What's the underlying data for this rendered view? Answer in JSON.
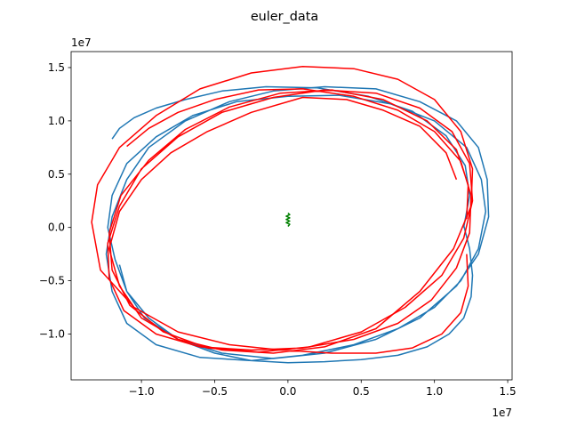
{
  "chart_data": {
    "type": "line",
    "title": "euler_data",
    "xlim": [
      -14800000,
      15300000
    ],
    "ylim": [
      -14300000,
      16500000
    ],
    "x_offset_label": "1e7",
    "y_offset_label": "1e7",
    "x_ticks": [
      {
        "value": -10000000,
        "label": "−1.0"
      },
      {
        "value": -5000000,
        "label": "−0.5"
      },
      {
        "value": 0,
        "label": "0.0"
      },
      {
        "value": 5000000,
        "label": "0.5"
      },
      {
        "value": 10000000,
        "label": "1.0"
      },
      {
        "value": 15000000,
        "label": "1.5"
      }
    ],
    "y_ticks": [
      {
        "value": -10000000,
        "label": "−1.0"
      },
      {
        "value": -5000000,
        "label": "−0.5"
      },
      {
        "value": 0,
        "label": "0.0"
      },
      {
        "value": 5000000,
        "label": "0.5"
      },
      {
        "value": 10000000,
        "label": "1.0"
      },
      {
        "value": 15000000,
        "label": "1.5"
      }
    ],
    "series": [
      {
        "color": "#1f77b4",
        "x": [
          12000000,
          12400000,
          12600000,
          12500000,
          12000000,
          11000000,
          9500000,
          7500000,
          5000000,
          2500000,
          0,
          -2500000,
          -5000000,
          -7500000,
          -9500000,
          -11000000,
          -11800000,
          -12300000,
          -12000000,
          -11000000,
          -9000000,
          -6500000,
          -3500000,
          0,
          3500000,
          7000000,
          10000000,
          12200000,
          13200000,
          13500000,
          13000000,
          11800000,
          10000000,
          7500000,
          4500000,
          1000000,
          -2500000,
          -6000000,
          -9000000,
          -11000000,
          -12000000,
          -12400000,
          -12000000,
          -11000000,
          -9500000,
          -7000000,
          -4000000,
          -1000000,
          2500000,
          6000000,
          9000000,
          11500000,
          13000000,
          13600000,
          13700000,
          13000000,
          11500000,
          9000000,
          6000000,
          2500000,
          -1000000,
          -4500000,
          -7500000,
          -9800000,
          -11000000,
          -11500000
        ],
        "y": [
          200000,
          -2000000,
          -4500000,
          -6500000,
          -8500000,
          -10000000,
          -11200000,
          -12000000,
          -12400000,
          -12600000,
          -12700000,
          -12500000,
          -11800000,
          -10500000,
          -8500000,
          -6000000,
          -3000000,
          0,
          3000000,
          6000000,
          8500000,
          10500000,
          11800000,
          12300000,
          12400000,
          11600000,
          10000000,
          7500000,
          4500000,
          1500000,
          -2000000,
          -5000000,
          -7500000,
          -9500000,
          -11000000,
          -12000000,
          -12500000,
          -12200000,
          -11000000,
          -9000000,
          -6000000,
          -2500000,
          1000000,
          4500000,
          7500000,
          10000000,
          11800000,
          12800000,
          13200000,
          13000000,
          11800000,
          10000000,
          7500000,
          4500000,
          1000000,
          -2500000,
          -5500000,
          -8500000,
          -10500000,
          -11800000,
          -12300000,
          -11800000,
          -10500000,
          -8500000,
          -6000000,
          -3500000
        ]
      },
      {
        "color": "#1f77b4",
        "x": [
          -12000000,
          -11500000,
          -10500000,
          -9000000,
          -7000000,
          -4500000,
          -1500000,
          2000000,
          5500000,
          8500000,
          10800000,
          12100000,
          12400000,
          12000000
        ],
        "y": [
          8300000,
          9300000,
          10300000,
          11200000,
          12000000,
          12800000,
          13200000,
          13100000,
          12300000,
          10900000,
          8600000,
          5800000,
          3000000,
          0
        ]
      },
      {
        "color": "#ff0000",
        "x": [
          -11000000,
          -9500000,
          -7500000,
          -5000000,
          -2000000,
          1000000,
          4500000,
          7500000,
          10000000,
          11800000,
          12500000,
          12400000,
          11500000,
          9800000,
          7500000,
          4500000,
          1000000,
          -2500000,
          -6000000,
          -9000000,
          -11200000,
          -12200000,
          -12300000,
          -11500000,
          -10000000,
          -7500000,
          -4500000,
          -1000000,
          2500000,
          6000000,
          9000000,
          11200000,
          12400000,
          12600000,
          12000000,
          10500000,
          8000000,
          5000000,
          1500000,
          -2000000,
          -5500000,
          -8500000,
          -10800000,
          -12000000,
          -12200000,
          -11400000,
          -9500000,
          -7000000,
          -4000000,
          -500000,
          3000000,
          6500000,
          9500000,
          11500000,
          12300000,
          12200000
        ],
        "y": [
          7600000,
          9300000,
          10800000,
          12000000,
          12900000,
          13000000,
          12300000,
          11000000,
          9000000,
          6200000,
          3000000,
          -500000,
          -3800000,
          -6800000,
          -9000000,
          -10500000,
          -11300000,
          -11500000,
          -11200000,
          -10000000,
          -7800000,
          -4800000,
          -1500000,
          2000000,
          5500000,
          8500000,
          10800000,
          12200000,
          12900000,
          12600000,
          11200000,
          9000000,
          6000000,
          2500000,
          -1000000,
          -4500000,
          -7500000,
          -9800000,
          -11200000,
          -11700000,
          -11300000,
          -9800000,
          -7300000,
          -4000000,
          -500000,
          3000000,
          6300000,
          9200000,
          11300000,
          12600000,
          12900000,
          12000000,
          10000000,
          7300000,
          4000000,
          800000
        ]
      },
      {
        "color": "#ff0000",
        "x": [
          12200000,
          12300000,
          11800000,
          10500000,
          8500000,
          6000000,
          3000000,
          -500000,
          -4000000,
          -7500000,
          -10500000,
          -12800000,
          -13400000,
          -13000000,
          -11500000,
          -9000000,
          -6000000,
          -2500000,
          1000000,
          4500000,
          7500000,
          10000000,
          11800000,
          12600000,
          12500000,
          11300000,
          9000000,
          6000000,
          2500000,
          -1000000,
          -4500000,
          -7500000,
          -10000000,
          -11500000,
          -12200000,
          -11500000,
          -10000000,
          -8000000,
          -5500000,
          -2500000,
          1000000,
          4000000,
          6500000,
          9000000,
          10800000,
          11500000
        ],
        "y": [
          -2500000,
          -5500000,
          -8000000,
          -10000000,
          -11300000,
          -11800000,
          -11800000,
          -11500000,
          -11000000,
          -9800000,
          -7500000,
          -4000000,
          500000,
          4000000,
          7500000,
          10500000,
          13000000,
          14500000,
          15100000,
          14900000,
          13900000,
          12000000,
          9000000,
          5500000,
          2000000,
          -2000000,
          -6000000,
          -9500000,
          -11200000,
          -11800000,
          -11500000,
          -10500000,
          -8500000,
          -5500000,
          -2000000,
          1500000,
          4500000,
          7000000,
          9000000,
          10800000,
          12200000,
          12000000,
          11000000,
          9500000,
          7000000,
          4500000
        ]
      },
      {
        "color": "#008000",
        "x": [
          0,
          120000,
          -120000,
          120000,
          -120000,
          120000,
          -120000,
          120000,
          0
        ],
        "y": [
          100000,
          300000,
          450000,
          600000,
          750000,
          900000,
          1050000,
          1200000,
          1350000
        ]
      }
    ]
  }
}
